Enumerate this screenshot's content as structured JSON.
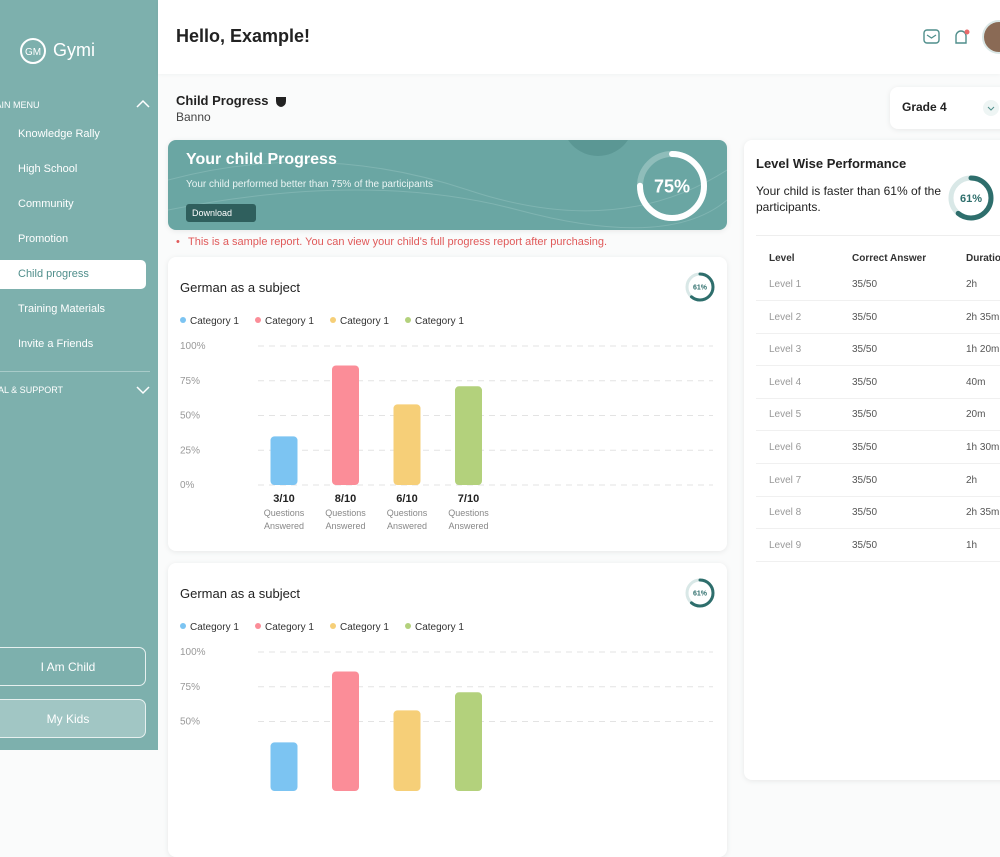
{
  "sidebar": {
    "logo": "Gymi",
    "main_menu": "MAIN MENU",
    "menu": [
      "Knowledge Rally",
      "High School",
      "Community",
      "Promotion",
      "Child progress",
      "Training Materials",
      "Invite a Friends"
    ],
    "legal": "LEGAL & SUPPORT",
    "buttons": [
      "I Am Child",
      "My Kids"
    ]
  },
  "header": {
    "greeting": "Hello, Example!"
  },
  "profile": {
    "title": "Child Progress",
    "name": "Banno",
    "grade": "Grade 4"
  },
  "banner": {
    "title": "Your child Progress",
    "text": "Your child performed better than 75% of the participants",
    "download": "Download",
    "progress": {
      "value": 75,
      "label": "75%"
    }
  },
  "note": "This is a sample report. You can view your child's full progress report after purchasing.",
  "performance": {
    "title": "Level Wise Performance",
    "text": "Your child is faster than 61% of the participants.",
    "score": {
      "value": 61,
      "label": "61%"
    }
  },
  "table": {
    "header": [
      "Level",
      "Correct Answer",
      "Duration"
    ],
    "rows": [
      [
        "Level 1",
        "35/50",
        "2h"
      ],
      [
        "Level 2",
        "35/50",
        "2h 35m"
      ],
      [
        "Level 3",
        "35/50",
        "1h 20m"
      ],
      [
        "Level 4",
        "35/50",
        "40m"
      ],
      [
        "Level 5",
        "35/50",
        "20m"
      ],
      [
        "Level 6",
        "35/50",
        "1h 30m"
      ],
      [
        "Level 7",
        "35/50",
        "2h"
      ],
      [
        "Level 8",
        "35/50",
        "2h 35m"
      ],
      [
        "Level 9",
        "35/50",
        "1h"
      ]
    ]
  },
  "chart_data": [
    {
      "type": "bar",
      "title": "German as a subject",
      "badge": {
        "value": 61,
        "label": "61%"
      },
      "categories": [
        "Category 1",
        "Category 1",
        "Category 1",
        "Category 1"
      ],
      "colors": [
        "#7cc4f2",
        "#fb8d98",
        "#f6cf78",
        "#b3d17c"
      ],
      "values": [
        35,
        86,
        58,
        71
      ],
      "answered": [
        "3/10",
        "8/10",
        "6/10",
        "7/10"
      ],
      "caption": [
        "Questions",
        "Answered"
      ],
      "ylim": [
        0,
        100
      ],
      "yticks": [
        {
          "value": 100,
          "label": "100%"
        },
        {
          "value": 75,
          "label": "75%"
        },
        {
          "value": 50,
          "label": "50%"
        },
        {
          "value": 25,
          "label": "25%"
        },
        {
          "value": 0,
          "label": "0%"
        }
      ],
      "grid": true
    },
    {
      "type": "bar",
      "title": "German as a subject",
      "badge": {
        "value": 61,
        "label": "61%"
      },
      "categories": [
        "Category 1",
        "Category 1",
        "Category 1",
        "Category 1"
      ],
      "colors": [
        "#7cc4f2",
        "#fb8d98",
        "#f6cf78",
        "#b3d17c"
      ],
      "values": [
        35,
        86,
        58,
        71
      ],
      "ylim": [
        0,
        100
      ],
      "yticks": [
        {
          "value": 100,
          "label": "100%"
        },
        {
          "value": 75,
          "label": "75%"
        },
        {
          "value": 50,
          "label": "50%"
        }
      ],
      "grid": true
    }
  ]
}
